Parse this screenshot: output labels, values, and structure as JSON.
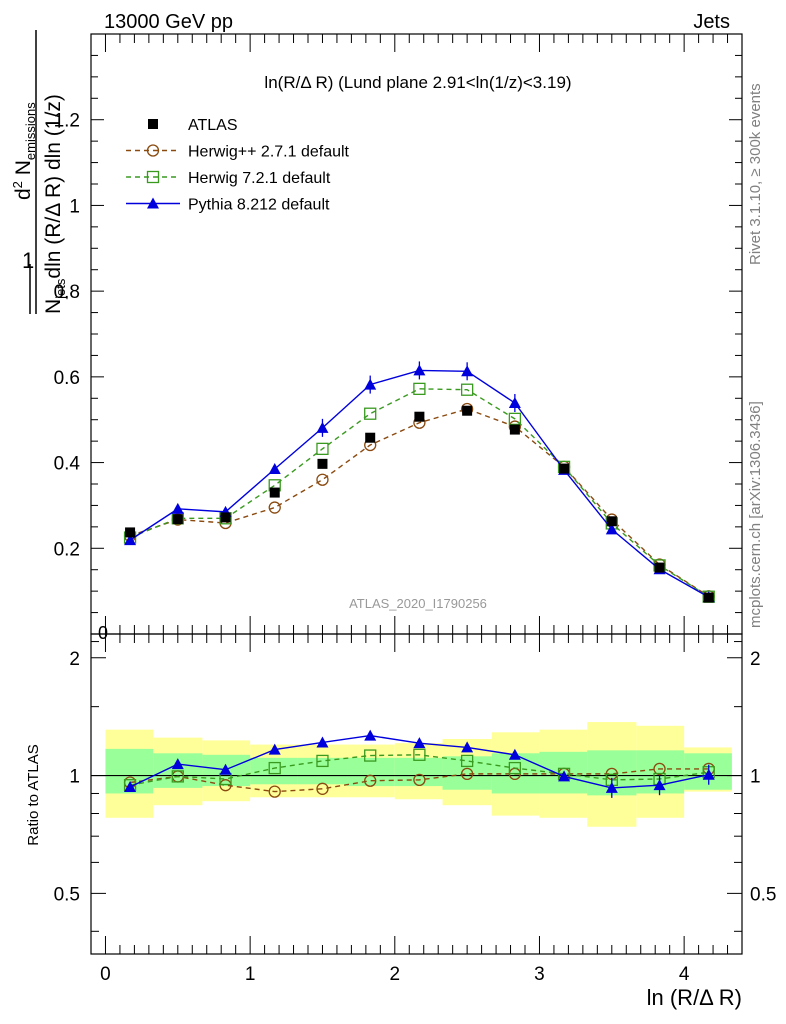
{
  "header": {
    "energy": "13000 GeV pp",
    "process": "Jets",
    "side_top": "Rivet 3.1.10, ≥ 300k events",
    "side_bottom": "mcplots.cern.ch [arXiv:1306.3436]",
    "watermark": "ATLAS_2020_I1790256"
  },
  "chart_data": [
    {
      "type": "scatter",
      "panel": "main",
      "title": "ln(R/Δ R) (Lund plane 2.91<ln(1/z)<3.19)",
      "ylabel": "1/N_jets d²N_emissions / dln(R/Δ R) dln(1/z)",
      "ylabel_parts": {
        "prefix_one": "1",
        "d2": "d",
        "sup2": "2",
        "N": "N",
        "emissions": "emissions",
        "denom_N": "N",
        "jets": "jets",
        "denom_rest": "dln (R/Δ R) dln (1/z)"
      },
      "xlim": [
        -0.1,
        4.4
      ],
      "ylim": [
        0,
        1.4
      ],
      "yticks": [
        0.2,
        0.4,
        0.6,
        0.8,
        1,
        1.2
      ],
      "ytick_labels": [
        "0.2",
        "0.4",
        "0.6",
        "0.8",
        "1",
        "1.2"
      ],
      "zero_label": "0",
      "x": [
        0.17,
        0.5,
        0.83,
        1.17,
        1.5,
        1.83,
        2.17,
        2.5,
        2.83,
        3.17,
        3.5,
        3.83,
        4.17
      ],
      "series": [
        {
          "name": "ATLAS",
          "style": "data",
          "color": "#000000",
          "values": [
            0.237,
            0.268,
            0.272,
            0.33,
            0.397,
            0.458,
            0.507,
            0.521,
            0.477,
            0.386,
            0.263,
            0.155,
            0.085
          ]
        },
        {
          "name": "Herwig++ 2.7.1 default",
          "style": "circle-dashed",
          "color": "#8a4a10",
          "values": [
            0.229,
            0.267,
            0.259,
            0.295,
            0.36,
            0.441,
            0.493,
            0.525,
            0.484,
            0.39,
            0.267,
            0.162,
            0.088
          ]
        },
        {
          "name": "Herwig 7.2.1 default",
          "style": "square-dashed",
          "color": "#3a9a20",
          "values": [
            0.225,
            0.27,
            0.27,
            0.347,
            0.432,
            0.514,
            0.572,
            0.57,
            0.502,
            0.39,
            0.258,
            0.16,
            0.087
          ]
        },
        {
          "name": "Pythia 8.212 default",
          "style": "triangle-solid",
          "color": "#0000dd",
          "values": [
            0.219,
            0.292,
            0.285,
            0.385,
            0.481,
            0.582,
            0.615,
            0.613,
            0.539,
            0.383,
            0.244,
            0.151,
            0.086
          ]
        }
      ]
    },
    {
      "type": "line",
      "panel": "ratio",
      "ylabel": "Ratio to ATLAS",
      "ylim": [
        0.35,
        2.3
      ],
      "yticks": [
        0.5,
        1,
        2
      ],
      "ytick_labels": [
        "0.5",
        "1",
        "2"
      ],
      "xticks": [
        0,
        1,
        2,
        3,
        4
      ],
      "xtick_labels": [
        "0",
        "1",
        "2",
        "3",
        "4"
      ],
      "xlabel": "ln (R/Δ R)",
      "bins": [
        [
          0,
          0.33
        ],
        [
          0.33,
          0.67
        ],
        [
          0.67,
          1.0
        ],
        [
          1.0,
          1.33
        ],
        [
          1.33,
          1.67
        ],
        [
          1.67,
          2.0
        ],
        [
          2.0,
          2.33
        ],
        [
          2.33,
          2.67
        ],
        [
          2.67,
          3.0
        ],
        [
          3.0,
          3.33
        ],
        [
          3.33,
          3.67
        ],
        [
          3.67,
          4.0
        ],
        [
          4.0,
          4.33
        ]
      ],
      "band_inner": [
        [
          0.9,
          1.17
        ],
        [
          0.93,
          1.14
        ],
        [
          0.94,
          1.13
        ],
        [
          0.95,
          1.11
        ],
        [
          0.95,
          1.11
        ],
        [
          0.94,
          1.11
        ],
        [
          0.94,
          1.11
        ],
        [
          0.92,
          1.12
        ],
        [
          0.9,
          1.14
        ],
        [
          0.9,
          1.15
        ],
        [
          0.89,
          1.16
        ],
        [
          0.9,
          1.16
        ],
        [
          0.92,
          1.14
        ]
      ],
      "band_outer": [
        [
          0.78,
          1.31
        ],
        [
          0.84,
          1.25
        ],
        [
          0.86,
          1.23
        ],
        [
          0.88,
          1.2
        ],
        [
          0.88,
          1.2
        ],
        [
          0.88,
          1.2
        ],
        [
          0.87,
          1.21
        ],
        [
          0.84,
          1.24
        ],
        [
          0.79,
          1.29
        ],
        [
          0.78,
          1.31
        ],
        [
          0.74,
          1.37
        ],
        [
          0.78,
          1.34
        ],
        [
          0.91,
          1.18
        ]
      ],
      "series": [
        {
          "name": "Herwig++ 2.7.1 default",
          "values": [
            0.96,
            0.995,
            0.945,
            0.91,
            0.925,
            0.97,
            0.975,
            1.01,
            1.01,
            1.01,
            1.01,
            1.04,
            1.04
          ]
        },
        {
          "name": "Herwig 7.2.1 default",
          "values": [
            0.945,
            0.995,
            0.98,
            1.045,
            1.09,
            1.125,
            1.13,
            1.09,
            1.045,
            1.01,
            0.975,
            0.98,
            1.02
          ]
        },
        {
          "name": "Pythia 8.212 default",
          "values": [
            0.935,
            1.07,
            1.035,
            1.165,
            1.215,
            1.265,
            1.21,
            1.18,
            1.13,
            0.995,
            0.93,
            0.945,
            1.005
          ]
        }
      ],
      "error_bars": {
        "Pythia 8.212 default": 0.035
      }
    }
  ]
}
